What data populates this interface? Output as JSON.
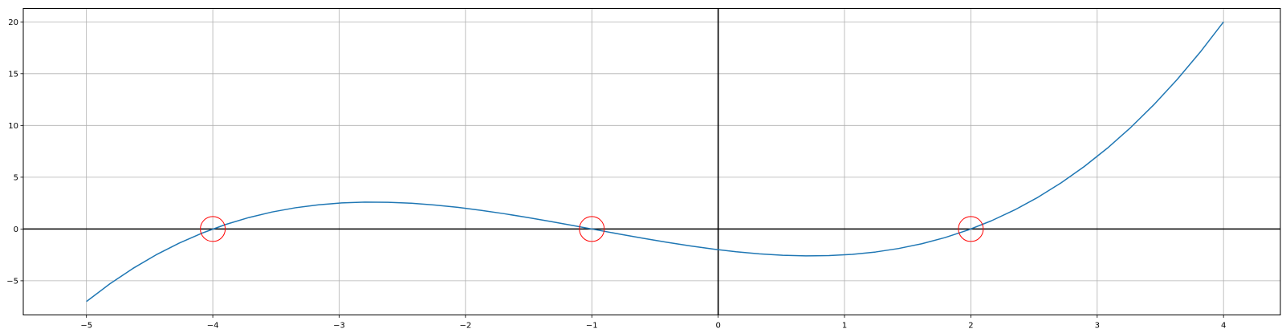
{
  "chart_data": {
    "type": "line",
    "title": "",
    "xlabel": "",
    "ylabel": "",
    "xlim": [
      -5.5,
      4.45
    ],
    "ylim": [
      -8.3,
      21.3
    ],
    "grid": true,
    "x_ticks": [
      -5,
      -4,
      -3,
      -2,
      -1,
      0,
      1,
      2,
      3,
      4
    ],
    "y_ticks": [
      -5,
      0,
      5,
      10,
      15,
      20
    ],
    "reference_lines": {
      "x": 0,
      "y": 0
    },
    "series": [
      {
        "color": "#1f77b4",
        "function": "y = (x + 4)(x + 1)(x - 2) / 4",
        "x_range": [
          -5,
          4
        ],
        "points": 50
      }
    ],
    "markers": [
      {
        "x": -4,
        "y": 0,
        "shape": "circle",
        "color": "#ff0000"
      },
      {
        "x": -1,
        "y": 0,
        "shape": "circle",
        "color": "#ff0000"
      },
      {
        "x": 2,
        "y": 0,
        "shape": "circle",
        "color": "#ff0000"
      }
    ]
  }
}
